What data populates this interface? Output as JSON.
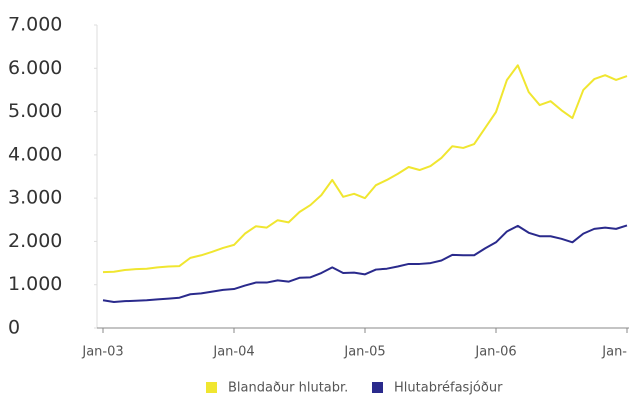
{
  "chart_data": {
    "type": "line",
    "categories": [
      "Jan-03",
      null,
      null,
      null,
      null,
      null,
      null,
      null,
      null,
      null,
      null,
      null,
      "Jan-04",
      null,
      null,
      null,
      null,
      null,
      null,
      null,
      null,
      null,
      null,
      null,
      "Jan-05",
      null,
      null,
      null,
      null,
      null,
      null,
      null,
      null,
      null,
      null,
      null,
      "Jan-06",
      null,
      null,
      null,
      null,
      null,
      null,
      null,
      null,
      null,
      null,
      null,
      "Jan-"
    ],
    "series": [
      {
        "name": "Blandaður hlutabr.",
        "color": "#f0e630",
        "values": [
          1290,
          1300,
          1340,
          1360,
          1370,
          1400,
          1420,
          1430,
          1620,
          1680,
          1760,
          1850,
          1920,
          2180,
          2350,
          2320,
          2490,
          2440,
          2680,
          2840,
          3070,
          3420,
          3030,
          3100,
          3000,
          3300,
          3420,
          3560,
          3720,
          3650,
          3740,
          3930,
          4200,
          4160,
          4250,
          4620,
          4990,
          5730,
          6070,
          5450,
          5150,
          5240,
          5030,
          4850,
          5500,
          5750,
          5840,
          5730,
          5820
        ]
      },
      {
        "name": "Hlutabréfasjóður",
        "color": "#2a2a8c",
        "values": [
          640,
          600,
          620,
          630,
          640,
          660,
          680,
          700,
          780,
          800,
          840,
          880,
          900,
          980,
          1050,
          1050,
          1100,
          1070,
          1160,
          1170,
          1270,
          1400,
          1270,
          1280,
          1240,
          1350,
          1370,
          1420,
          1480,
          1480,
          1500,
          1560,
          1690,
          1680,
          1680,
          1840,
          1980,
          2230,
          2360,
          2200,
          2120,
          2120,
          2060,
          1980,
          2180,
          2290,
          2320,
          2290,
          2370
        ]
      }
    ],
    "ylim": [
      0,
      7000
    ],
    "yticks": [
      0,
      {
        "value": 1000,
        "label": "1.000"
      },
      {
        "value": 2000,
        "label": "2.000"
      },
      {
        "value": 3000,
        "label": "3.000"
      },
      {
        "value": 4000,
        "label": "4.000"
      },
      {
        "value": 5000,
        "label": "5.000"
      },
      {
        "value": 6000,
        "label": "6.000"
      },
      {
        "value": 7000,
        "label": "7.000"
      }
    ],
    "grid": false,
    "legend": "bottom"
  }
}
